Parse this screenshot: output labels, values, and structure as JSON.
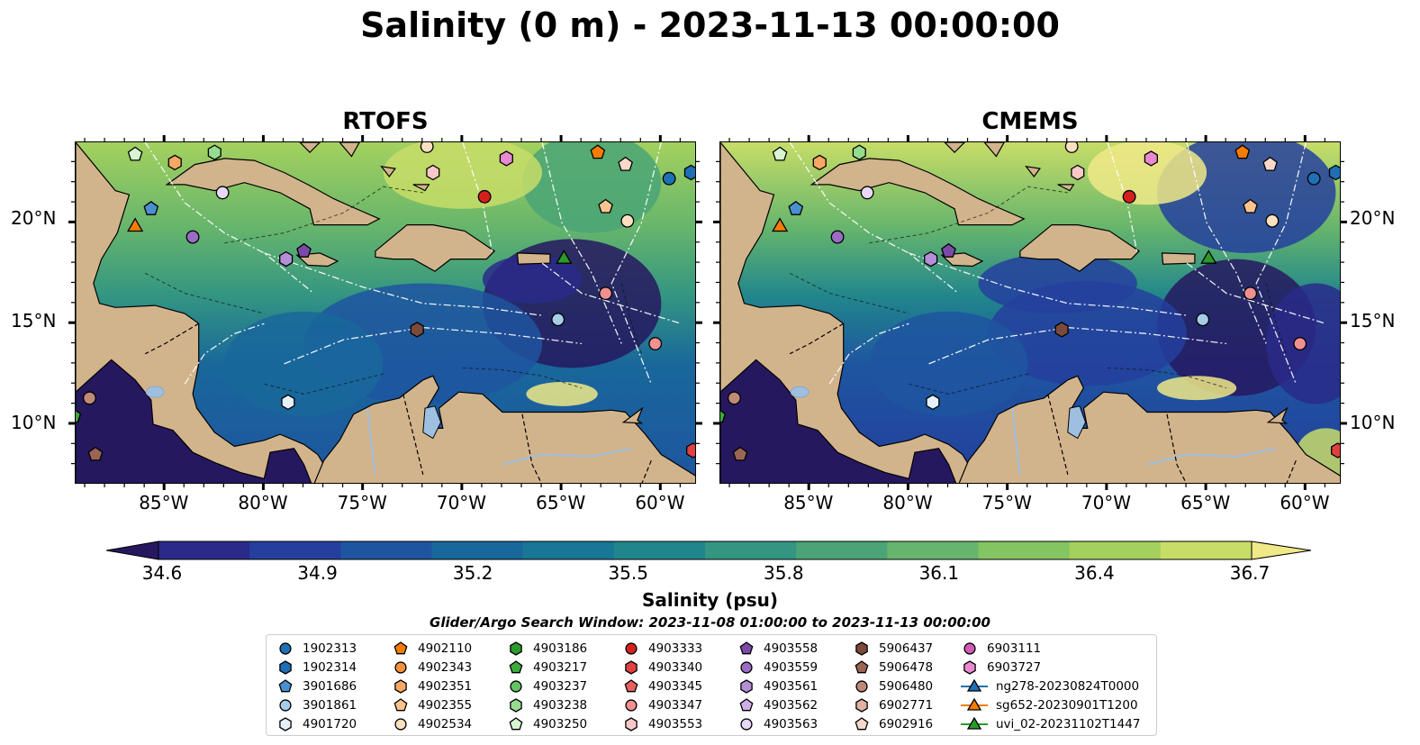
{
  "title": "Salinity (0 m) - 2023-11-13 00:00:00",
  "panels": [
    {
      "title": "RTOFS"
    },
    {
      "title": "CMEMS"
    }
  ],
  "lat_ticks": [
    "20°N",
    "15°N",
    "10°N"
  ],
  "lon_ticks": [
    "85°W",
    "80°W",
    "75°W",
    "70°W",
    "65°W",
    "60°W"
  ],
  "colorbar": {
    "ticks": [
      "34.6",
      "34.9",
      "35.2",
      "35.5",
      "35.8",
      "36.1",
      "36.4",
      "36.7"
    ],
    "label": "Salinity (psu)",
    "colors": [
      "#26185f",
      "#2a2a8a",
      "#243f9d",
      "#1e55a0",
      "#19679b",
      "#187794",
      "#21868c",
      "#339582",
      "#4aa476",
      "#66b56c",
      "#83c560",
      "#a4d15e",
      "#c7dd68",
      "#f0e987"
    ]
  },
  "search_window": "Glider/Argo Search Window: 2023-11-08 01:00:00 to 2023-11-13 00:00:00",
  "legend": {
    "columns": [
      [
        {
          "label": "1902313",
          "marker": "circle",
          "color": "#1f6fb4"
        },
        {
          "label": "1902314",
          "marker": "hexagon",
          "color": "#1f6fb4"
        },
        {
          "label": "3901686",
          "marker": "pentagon",
          "color": "#4a90d0"
        },
        {
          "label": "3901861",
          "marker": "circle",
          "color": "#a6cde8"
        },
        {
          "label": "4901720",
          "marker": "hexagon",
          "color": "#e6f0fa"
        }
      ],
      [
        {
          "label": "4902110",
          "marker": "pentagon",
          "color": "#f57c00"
        },
        {
          "label": "4902343",
          "marker": "circle",
          "color": "#f7923a"
        },
        {
          "label": "4902351",
          "marker": "hexagon",
          "color": "#f8a863"
        },
        {
          "label": "4902355",
          "marker": "pentagon",
          "color": "#fbc48e"
        },
        {
          "label": "4902534",
          "marker": "circle",
          "color": "#fde0c0"
        }
      ],
      [
        {
          "label": "4903186",
          "marker": "hexagon",
          "color": "#2a9a2a"
        },
        {
          "label": "4903217",
          "marker": "pentagon",
          "color": "#3caa3c"
        },
        {
          "label": "4903237",
          "marker": "circle",
          "color": "#63c463"
        },
        {
          "label": "4903238",
          "marker": "hexagon",
          "color": "#96db8f"
        },
        {
          "label": "4903250",
          "marker": "pentagon",
          "color": "#d8f5d0"
        }
      ],
      [
        {
          "label": "4903333",
          "marker": "circle",
          "color": "#d62020"
        },
        {
          "label": "4903340",
          "marker": "hexagon",
          "color": "#e04040"
        },
        {
          "label": "4903345",
          "marker": "pentagon",
          "color": "#e86060"
        },
        {
          "label": "4903347",
          "marker": "circle",
          "color": "#f09090"
        },
        {
          "label": "4903553",
          "marker": "hexagon",
          "color": "#f8c8c8"
        }
      ],
      [
        {
          "label": "4903558",
          "marker": "pentagon",
          "color": "#7b4aa8"
        },
        {
          "label": "4903559",
          "marker": "circle",
          "color": "#9a6cc4"
        },
        {
          "label": "4903561",
          "marker": "hexagon",
          "color": "#b48ed6"
        },
        {
          "label": "4903562",
          "marker": "pentagon",
          "color": "#cdb0e6"
        },
        {
          "label": "4903563",
          "marker": "circle",
          "color": "#e8d8f5"
        }
      ],
      [
        {
          "label": "5906437",
          "marker": "hexagon",
          "color": "#7a4a3a"
        },
        {
          "label": "5906478",
          "marker": "pentagon",
          "color": "#9a6654"
        },
        {
          "label": "5906480",
          "marker": "circle",
          "color": "#c08a78"
        },
        {
          "label": "6902771",
          "marker": "hexagon",
          "color": "#e0b0a0"
        },
        {
          "label": "6902916",
          "marker": "pentagon",
          "color": "#f8d8cc"
        }
      ],
      [
        {
          "label": "6903111",
          "marker": "circle",
          "color": "#d05ab8"
        },
        {
          "label": "6903727",
          "marker": "hexagon",
          "color": "#e88ad0"
        },
        {
          "label": "ng278-20230824T0000",
          "marker": "triangle-line",
          "color": "#1f6fb4"
        },
        {
          "label": "sg652-20230901T1200",
          "marker": "triangle-line",
          "color": "#f57c00"
        },
        {
          "label": "uvi_02-20231102T1447",
          "marker": "triangle-line",
          "color": "#2a9a2a"
        }
      ]
    ]
  },
  "colors": {
    "land": "#d2b48c",
    "lake": "#9fbfe0",
    "contour": "#000000",
    "eez": "#ffffff"
  }
}
